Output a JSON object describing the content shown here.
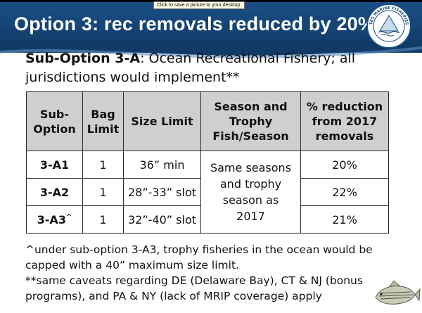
{
  "tooltip": "Click to save a picture to your desktop.",
  "slide": {
    "title": "Option 3: rec removals reduced by 20%",
    "subtitle_bold": "Sub-Option 3-A",
    "subtitle_rest": ": Ocean Recreational Fishery; all jurisdictions would implement**"
  },
  "table": {
    "headers": {
      "sub_option": "Sub-Option",
      "bag_limit": "Bag Limit",
      "size_limit": "Size Limit",
      "season": "Season and Trophy Fish/Season",
      "reduction": "% reduction from 2017 removals"
    },
    "rows": [
      {
        "sub_option": "3-A1",
        "sup": "",
        "bag": "1",
        "size": "36” min",
        "reduction": "20%"
      },
      {
        "sub_option": "3-A2",
        "sup": "",
        "bag": "1",
        "size": "28”-33” slot",
        "reduction": "22%"
      },
      {
        "sub_option": "3-A3",
        "sup": "^",
        "bag": "1",
        "size": "32”-40” slot",
        "reduction": "21%"
      }
    ],
    "season_merged": "Same seasons and trophy season as 2017"
  },
  "notes": {
    "note1": "^under sub-option 3-A3, trophy fisheries in the ocean would be capped with a 40” maximum size limit.",
    "note2": "**same caveats regarding DE (Delaware Bay), CT & NJ (bonus programs), and PA & NY (lack of MRIP coverage) apply"
  },
  "logo_text": "ATLANTIC STATES MARINE FISHERIES COMMISSION",
  "colors": {
    "title_bar": "#1a4f86",
    "header_fill": "#d0cece"
  },
  "icons": {
    "logo": "asmfc-logo-icon",
    "fish": "striped-bass-icon"
  }
}
